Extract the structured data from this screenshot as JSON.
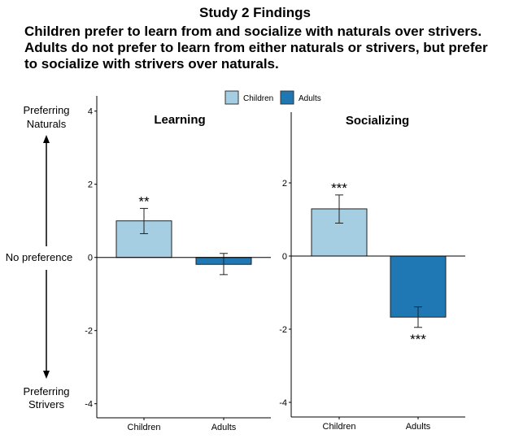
{
  "header": {
    "title": "Study 2 Findings",
    "subtitle_lines": [
      "Children prefer to learn from and socialize with naturals over strivers.",
      "Adults do not prefer to learn from either naturals or strivers, but prefer",
      "to socialize with strivers over naturals."
    ]
  },
  "side_labels": {
    "top": [
      "Preferring",
      "Naturals"
    ],
    "middle": "No preference",
    "bottom": [
      "Preferring",
      "Strivers"
    ]
  },
  "legend": {
    "entries": [
      "Children",
      "Adults"
    ],
    "placement": "top-center"
  },
  "colors": {
    "Children": "#a6cee3",
    "Adults": "#1f78b4"
  },
  "chart_data": [
    {
      "type": "bar",
      "title": "Learning",
      "categories": [
        "Children",
        "Adults"
      ],
      "values": [
        1.0,
        -0.19
      ],
      "error_low": [
        0.65,
        -0.47
      ],
      "error_high": [
        1.34,
        0.11
      ],
      "annotations": [
        "**",
        ""
      ],
      "yticks": [
        4,
        2,
        0,
        -2,
        -4
      ],
      "ylim": [
        -4.4,
        4.4
      ],
      "grid": false
    },
    {
      "type": "bar",
      "title": "Socializing",
      "categories": [
        "Children",
        "Adults"
      ],
      "values": [
        1.29,
        -1.67
      ],
      "error_low": [
        0.9,
        -1.95
      ],
      "error_high": [
        1.67,
        -1.39
      ],
      "annotations": [
        "***",
        "***"
      ],
      "yticks": [
        2,
        0,
        -2,
        -4
      ],
      "ylim": [
        -4.4,
        4.0
      ],
      "grid": false
    }
  ]
}
